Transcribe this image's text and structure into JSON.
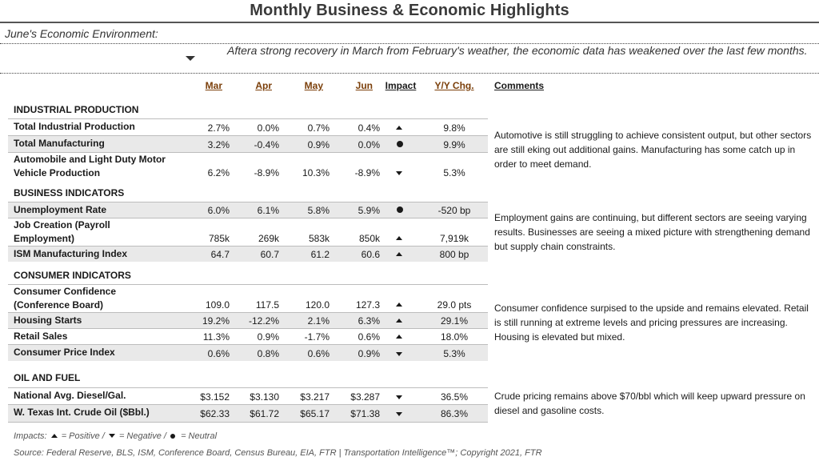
{
  "title": "Monthly Business & Economic Highlights",
  "environment_label": "June's Economic Environment:",
  "summary": "Aftera strong recovery in March from February's weather, the economic data has weakened over the last few months.",
  "columns": {
    "mar": "Mar",
    "apr": "Apr",
    "may": "May",
    "jun": "Jun",
    "impact": "Impact",
    "yoy": "Y/Y Chg.",
    "comments": "Comments"
  },
  "sections": [
    {
      "name": "INDUSTRIAL PRODUCTION",
      "rows": [
        {
          "label": "Total Industrial Production",
          "mar": "2.7%",
          "apr": "0.0%",
          "may": "0.7%",
          "jun": "0.4%",
          "impact": "positive",
          "yoy": "9.8%"
        },
        {
          "label": "Total Manufacturing",
          "mar": "3.2%",
          "apr": "-0.4%",
          "may": "0.9%",
          "jun": "0.0%",
          "impact": "neutral",
          "yoy": "9.9%"
        },
        {
          "label": "Automobile and Light Duty Motor Vehicle Production",
          "mar": "6.2%",
          "apr": "-8.9%",
          "may": "10.3%",
          "jun": "-8.9%",
          "impact": "negative",
          "yoy": "5.3%"
        }
      ],
      "comment": "Automotive is still struggling to achieve consistent output, but other sectors are still eking out additional gains. Manufacturing has some catch up in order to meet demand."
    },
    {
      "name": "BUSINESS INDICATORS",
      "rows": [
        {
          "label": "Unemployment Rate",
          "mar": "6.0%",
          "apr": "6.1%",
          "may": "5.8%",
          "jun": "5.9%",
          "impact": "neutral",
          "yoy": "-520 bp"
        },
        {
          "label": "Job Creation (Payroll Employment)",
          "mar": "785k",
          "apr": "269k",
          "may": "583k",
          "jun": "850k",
          "impact": "positive",
          "yoy": "7,919k"
        },
        {
          "label": "ISM Manufacturing Index",
          "mar": "64.7",
          "apr": "60.7",
          "may": "61.2",
          "jun": "60.6",
          "impact": "positive",
          "yoy": "800 bp"
        }
      ],
      "comment": "Employment gains are continuing, but different sectors are seeing varying results. Businesses are seeing a mixed picture with strengthening demand but supply chain constraints."
    },
    {
      "name": "CONSUMER INDICATORS",
      "rows": [
        {
          "label": "Consumer Confidence (Conference Board)",
          "mar": "109.0",
          "apr": "117.5",
          "may": "120.0",
          "jun": "127.3",
          "impact": "positive",
          "yoy": "29.0 pts"
        },
        {
          "label": "Housing Starts",
          "mar": "19.2%",
          "apr": "-12.2%",
          "may": "2.1%",
          "jun": "6.3%",
          "impact": "positive",
          "yoy": "29.1%"
        },
        {
          "label": "Retail Sales",
          "mar": "11.3%",
          "apr": "0.9%",
          "may": "-1.7%",
          "jun": "0.6%",
          "impact": "positive",
          "yoy": "18.0%"
        },
        {
          "label": "Consumer Price Index",
          "mar": "0.6%",
          "apr": "0.8%",
          "may": "0.6%",
          "jun": "0.9%",
          "impact": "negative",
          "yoy": "5.3%"
        }
      ],
      "comment": "Consumer confidence surpised to the upside and remains elevated. Retail is still running at extreme levels and pricing pressures are increasing. Housing is elevated but mixed."
    },
    {
      "name": "OIL AND FUEL",
      "rows": [
        {
          "label": "National Avg. Diesel/Gal.",
          "mar": "$3.152",
          "apr": "$3.130",
          "may": "$3.217",
          "jun": "$3.287",
          "impact": "negative",
          "yoy": "36.5%"
        },
        {
          "label": "W. Texas Int. Crude Oil ($Bbl.)",
          "mar": "$62.33",
          "apr": "$61.72",
          "may": "$65.17",
          "jun": "$71.38",
          "impact": "negative",
          "yoy": "86.3%"
        }
      ],
      "comment": "Crude pricing remains above $70/bbl which will keep upward pressure on diesel and gasoline costs."
    }
  ],
  "legend": {
    "prefix": "Impacts:",
    "positive": "= Positive /",
    "negative": "= Negative /",
    "neutral": "= Neutral"
  },
  "source": "Source: Federal Reserve, BLS, ISM, Conference Board, Census Bureau, EIA, FTR | Transportation Intelligence™; Copyright 2021, FTR"
}
